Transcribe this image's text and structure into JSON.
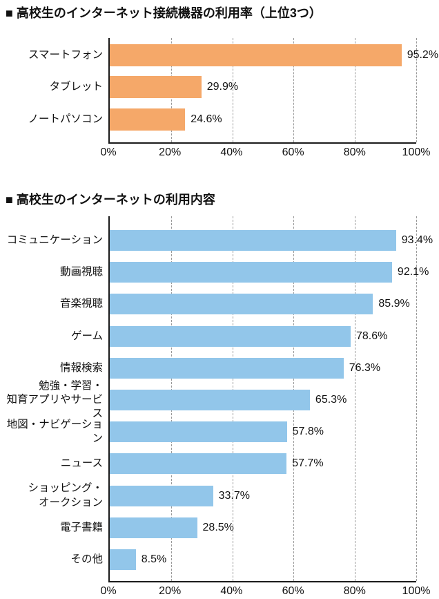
{
  "page": {
    "background": "#ffffff",
    "text_color": "#111111"
  },
  "chart_data": [
    {
      "type": "bar",
      "orientation": "horizontal",
      "title": "■ 高校生のインターネット接続機器の利用率（上位3つ）",
      "categories": [
        "スマートフォン",
        "タブレット",
        "ノートパソコン"
      ],
      "values": [
        95.2,
        29.9,
        24.6
      ],
      "value_labels": [
        "95.2%",
        "29.9%",
        "24.6%"
      ],
      "bar_color": "#F5A869",
      "axis_color": "#1a1a1a",
      "gridline_color": "#999999",
      "grid": "dashed-vertical",
      "xlim": [
        0,
        100
      ],
      "x_ticks": [
        {
          "value": 0,
          "label": "0%"
        },
        {
          "value": 20,
          "label": "20%"
        },
        {
          "value": 40,
          "label": "40%"
        },
        {
          "value": 60,
          "label": "60%"
        },
        {
          "value": 80,
          "label": "80%"
        },
        {
          "value": 100,
          "label": "100%"
        }
      ]
    },
    {
      "type": "bar",
      "orientation": "horizontal",
      "title": "■ 高校生のインターネットの利用内容",
      "categories": [
        "コミュニケーション",
        "動画視聴",
        "音楽視聴",
        "ゲーム",
        "情報検索",
        "勉強・学習・\n知育アプリやサービス",
        "地図・ナビゲーション",
        "ニュース",
        "ショッピング・\nオークション",
        "電子書籍",
        "その他"
      ],
      "values": [
        93.4,
        92.1,
        85.9,
        78.6,
        76.3,
        65.3,
        57.8,
        57.7,
        33.7,
        28.5,
        8.5
      ],
      "value_labels": [
        "93.4%",
        "92.1%",
        "85.9%",
        "78.6%",
        "76.3%",
        "65.3%",
        "57.8%",
        "57.7%",
        "33.7%",
        "28.5%",
        "8.5%"
      ],
      "bar_color": "#92C6EA",
      "axis_color": "#1a1a1a",
      "gridline_color": "#999999",
      "grid": "dashed-vertical",
      "xlim": [
        0,
        100
      ],
      "x_ticks": [
        {
          "value": 0,
          "label": "0%"
        },
        {
          "value": 20,
          "label": "20%"
        },
        {
          "value": 40,
          "label": "40%"
        },
        {
          "value": 60,
          "label": "60%"
        },
        {
          "value": 80,
          "label": "80%"
        },
        {
          "value": 100,
          "label": "100%"
        }
      ]
    }
  ]
}
